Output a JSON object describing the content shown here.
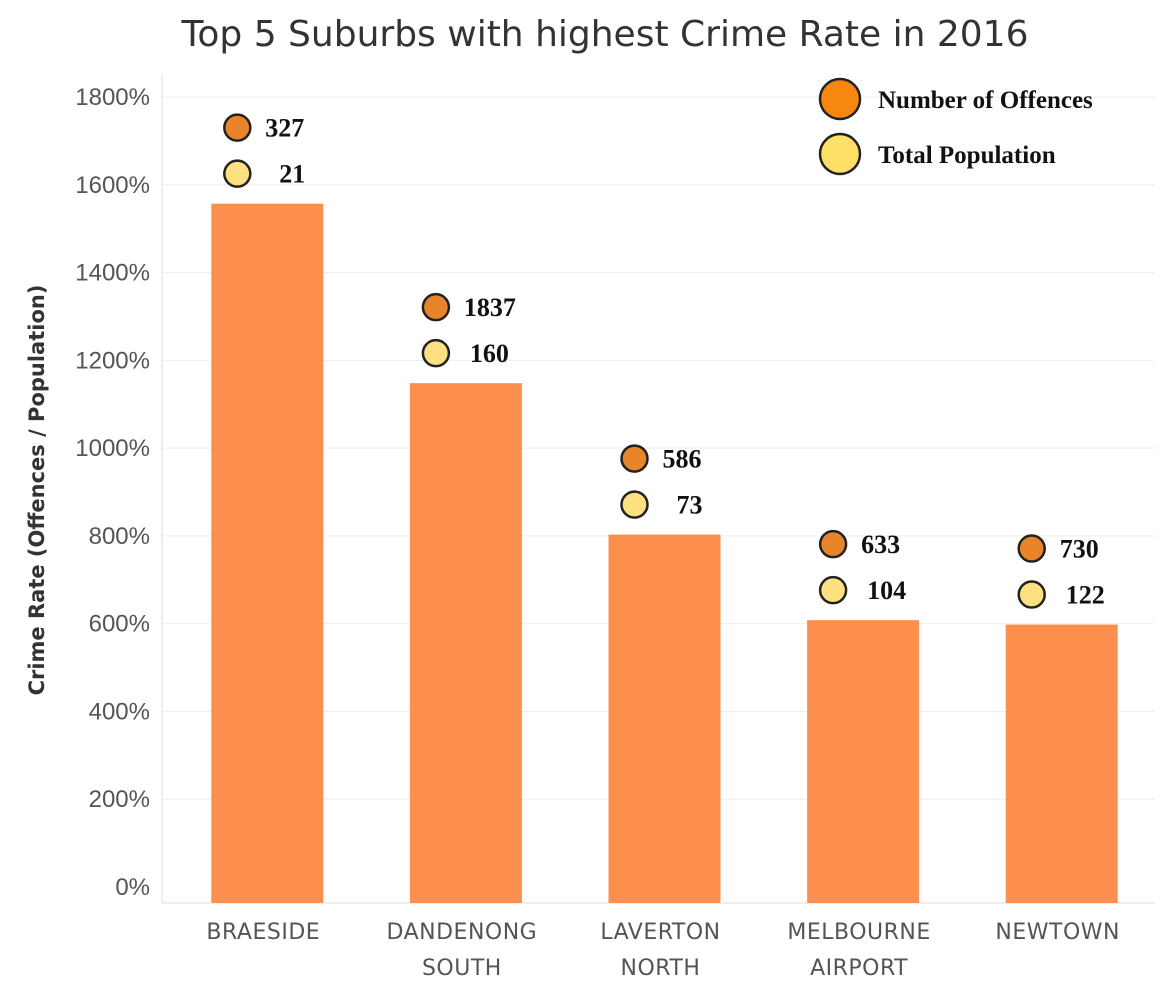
{
  "chart_data": {
    "type": "bar",
    "title": "Top 5 Suburbs with highest Crime Rate in 2016",
    "ylabel": "Crime Rate (Offences / Population)",
    "xlabel": "",
    "ylim": [
      0,
      1800
    ],
    "yticks": [
      "0%",
      "200%",
      "400%",
      "600%",
      "800%",
      "1000%",
      "1200%",
      "1400%",
      "1600%",
      "1800%"
    ],
    "ytick_values": [
      0,
      200,
      400,
      600,
      800,
      1000,
      1200,
      1400,
      1600,
      1800
    ],
    "categories": [
      [
        "BRAESIDE"
      ],
      [
        "DANDENONG",
        "SOUTH"
      ],
      [
        "LAVERTON",
        "NORTH"
      ],
      [
        "MELBOURNE",
        "AIRPORT"
      ],
      [
        "NEWTOWN"
      ]
    ],
    "values": [
      1557,
      1148,
      803,
      608,
      598
    ],
    "annotations": {
      "offences": [
        "327",
        "1837",
        "586",
        "633",
        "730"
      ],
      "population": [
        "21",
        "160",
        "73",
        "104",
        "122"
      ]
    },
    "legend": {
      "position": "top-right",
      "items": [
        {
          "label": "Number of Offences",
          "color": "#f7870f"
        },
        {
          "label": "Total Population",
          "color": "#ffe066"
        }
      ]
    },
    "grid": true,
    "colors": {
      "bar": "#fd8f4e",
      "offences_marker": "#e8852a",
      "population_marker": "#fde07f",
      "grid": "#eeeeee",
      "axis": "#dddddd"
    }
  }
}
